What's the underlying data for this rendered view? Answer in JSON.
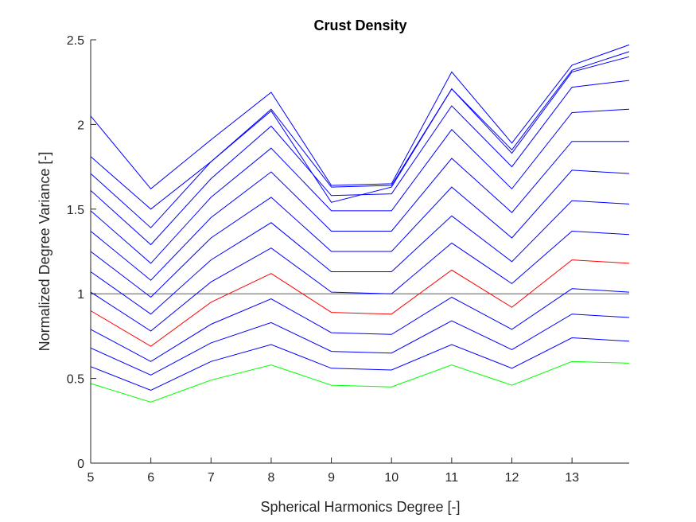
{
  "chart_data": {
    "type": "line",
    "title": "Crust Density",
    "xlabel": "Spherical Harmonics Degree [-]",
    "ylabel": "Normalized Degree Variance [-]",
    "xlim": [
      5,
      13.95
    ],
    "ylim": [
      0,
      2.5
    ],
    "x_ticks": [
      5,
      6,
      7,
      8,
      9,
      10,
      11,
      12,
      13
    ],
    "x_tick_labels": [
      "5",
      "6",
      "7",
      "8",
      "9",
      "10",
      "11",
      "12",
      "13"
    ],
    "y_ticks": [
      0,
      0.5,
      1,
      1.5,
      2,
      2.5
    ],
    "y_tick_labels": [
      "0",
      "0.5",
      "1",
      "1.5",
      "2",
      "2.5"
    ],
    "grid": false,
    "reference_line": {
      "y": 1,
      "color": "#404040"
    },
    "x": [
      5,
      6,
      7,
      8,
      9,
      10,
      11,
      12,
      13,
      13.95
    ],
    "series": [
      {
        "color": "#00ff00",
        "values": [
          0.47,
          0.36,
          0.49,
          0.58,
          0.46,
          0.45,
          0.58,
          0.46,
          0.6,
          0.59
        ]
      },
      {
        "color": "#0000ff",
        "values": [
          0.57,
          0.43,
          0.6,
          0.7,
          0.56,
          0.55,
          0.7,
          0.56,
          0.74,
          0.72
        ]
      },
      {
        "color": "#0000ff",
        "values": [
          0.68,
          0.52,
          0.71,
          0.83,
          0.66,
          0.65,
          0.84,
          0.67,
          0.88,
          0.86
        ]
      },
      {
        "color": "#0000ff",
        "values": [
          0.79,
          0.6,
          0.82,
          0.97,
          0.77,
          0.76,
          0.98,
          0.79,
          1.03,
          1.01
        ]
      },
      {
        "color": "#ff0000",
        "values": [
          0.9,
          0.69,
          0.95,
          1.12,
          0.89,
          0.88,
          1.14,
          0.92,
          1.2,
          1.18
        ]
      },
      {
        "color": "#0000ff",
        "values": [
          1.01,
          0.78,
          1.07,
          1.27,
          1.01,
          1.0,
          1.3,
          1.06,
          1.37,
          1.35
        ]
      },
      {
        "color": "#0000ff",
        "values": [
          1.13,
          0.88,
          1.2,
          1.42,
          1.13,
          1.13,
          1.46,
          1.19,
          1.55,
          1.53
        ]
      },
      {
        "color": "#0000ff",
        "values": [
          1.25,
          0.98,
          1.33,
          1.57,
          1.25,
          1.25,
          1.63,
          1.33,
          1.73,
          1.71
        ]
      },
      {
        "color": "#0000ff",
        "values": [
          1.37,
          1.08,
          1.45,
          1.72,
          1.37,
          1.37,
          1.8,
          1.48,
          1.9,
          1.9
        ]
      },
      {
        "color": "#0000ff",
        "values": [
          1.49,
          1.18,
          1.57,
          1.86,
          1.49,
          1.49,
          1.97,
          1.62,
          2.07,
          2.09
        ]
      },
      {
        "color": "#0000ff",
        "values": [
          1.61,
          1.29,
          1.68,
          1.99,
          1.58,
          1.59,
          2.11,
          1.75,
          2.22,
          2.26
        ]
      },
      {
        "color": "#0000ff",
        "values": [
          1.71,
          1.39,
          1.78,
          2.08,
          1.54,
          1.63,
          2.21,
          1.83,
          2.31,
          2.4
        ]
      },
      {
        "color": "#0000ff",
        "values": [
          1.81,
          1.5,
          1.78,
          2.09,
          1.63,
          1.64,
          2.21,
          1.85,
          2.32,
          2.43
        ]
      },
      {
        "color": "#0000ff",
        "values": [
          2.05,
          1.62,
          1.91,
          2.19,
          1.64,
          1.65,
          2.31,
          1.89,
          2.35,
          2.47
        ]
      }
    ]
  }
}
